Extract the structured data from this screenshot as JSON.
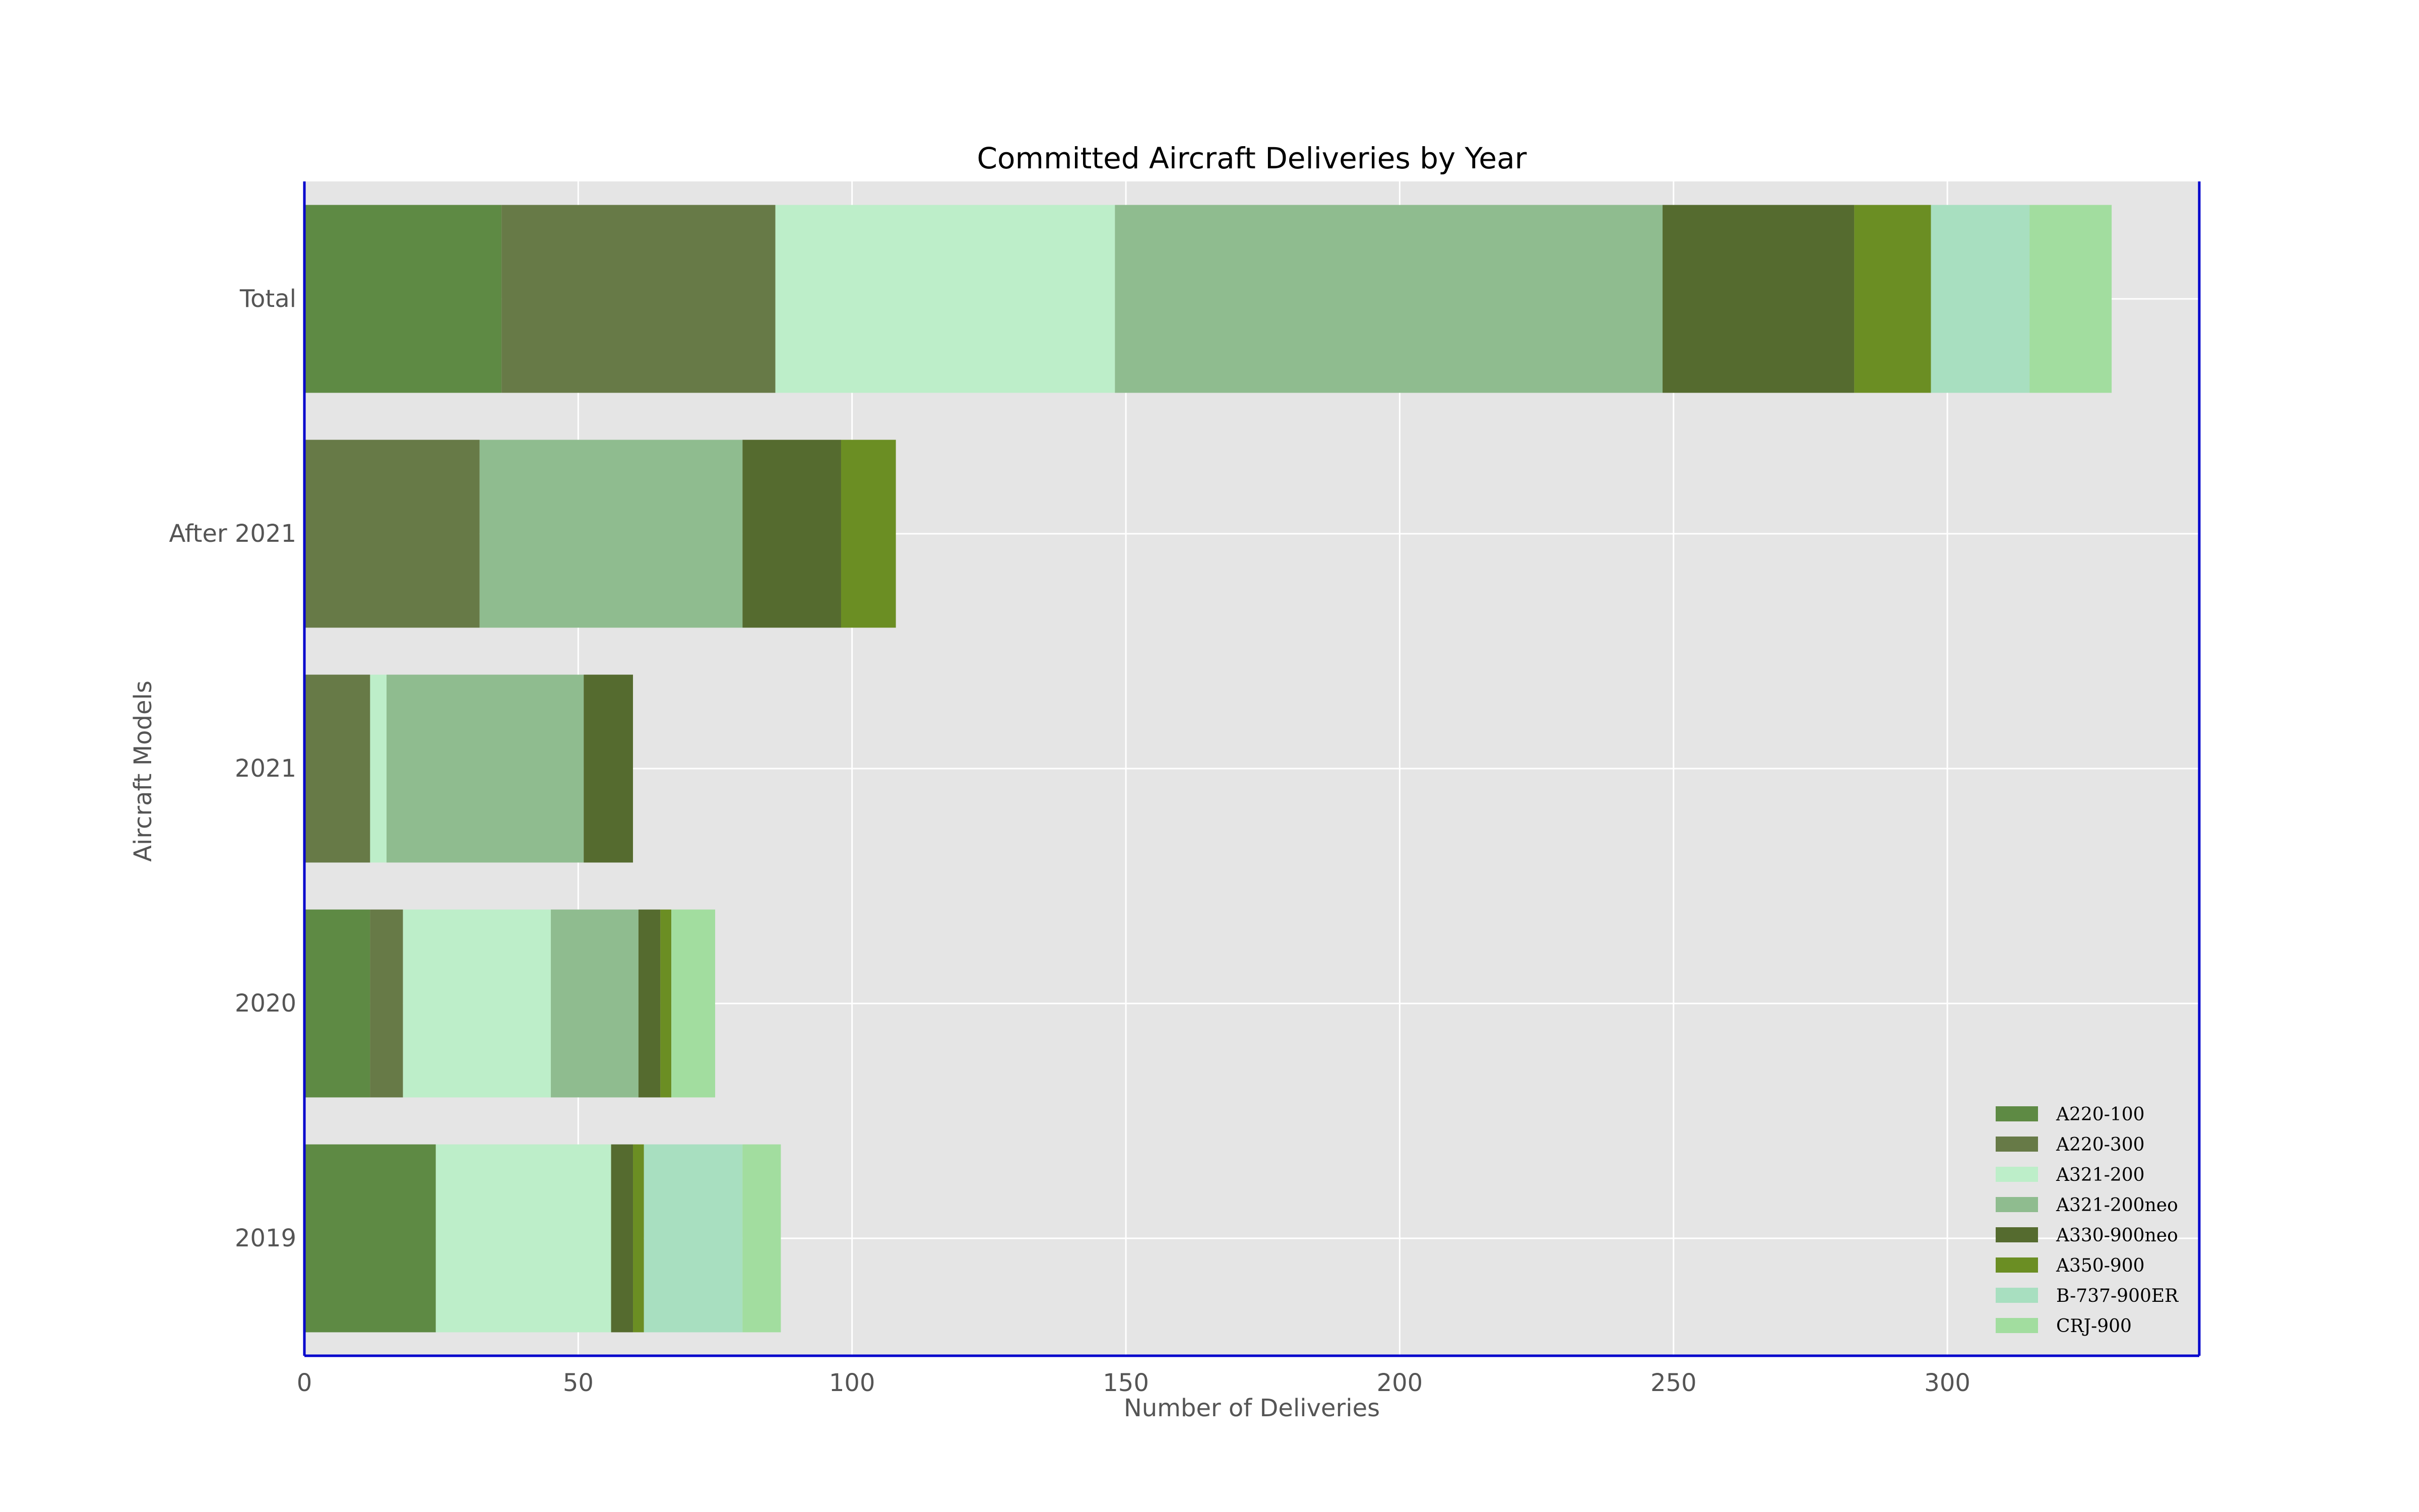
{
  "chart_data": {
    "type": "bar",
    "orientation": "horizontal",
    "stacked": true,
    "title": "Committed Aircraft Deliveries by Year",
    "xlabel": "Number of Deliveries",
    "ylabel": "Aircraft Models",
    "categories": [
      "2019",
      "2020",
      "2021",
      "After 2021",
      "Total"
    ],
    "xlim": [
      0,
      346
    ],
    "xticks": [
      0,
      50,
      100,
      150,
      200,
      250,
      300
    ],
    "grid": true,
    "legend_position": "lower-right",
    "series": [
      {
        "name": "A220-100",
        "color": "#5e8a44",
        "values": [
          24,
          12,
          0,
          0,
          36
        ]
      },
      {
        "name": "A220-300",
        "color": "#677a47",
        "values": [
          0,
          6,
          12,
          32,
          50
        ]
      },
      {
        "name": "A321-200",
        "color": "#bdeec9",
        "values": [
          32,
          27,
          3,
          0,
          62
        ]
      },
      {
        "name": "A321-200neo",
        "color": "#8fbc8f",
        "values": [
          0,
          16,
          36,
          48,
          100
        ]
      },
      {
        "name": "A330-900neo",
        "color": "#556b2f",
        "values": [
          4,
          4,
          9,
          18,
          35
        ]
      },
      {
        "name": "A350-900",
        "color": "#6b8e23",
        "values": [
          2,
          2,
          0,
          10,
          14
        ]
      },
      {
        "name": "B-737-900ER",
        "color": "#a8dfc0",
        "values": [
          18,
          0,
          0,
          0,
          18
        ]
      },
      {
        "name": "CRJ-900",
        "color": "#a2dd9f",
        "values": [
          7,
          8,
          0,
          0,
          15
        ]
      }
    ]
  }
}
